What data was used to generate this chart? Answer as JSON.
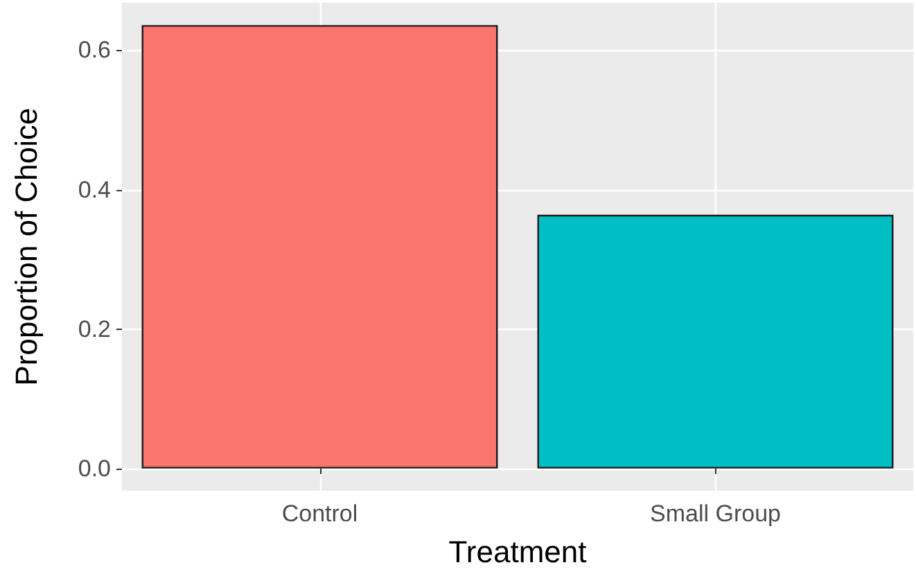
{
  "chart_data": {
    "type": "bar",
    "xlabel": "Treatment",
    "ylabel": "Proportion of Choice",
    "categories": [
      "Control",
      "Small Group"
    ],
    "values": [
      0.636,
      0.364
    ],
    "colors": [
      "#f8766d",
      "#00bfc4"
    ],
    "ylim": [
      -0.032,
      0.668
    ],
    "yticks": [
      {
        "value": 0,
        "label": "0.0"
      },
      {
        "value": 0.2,
        "label": "0.2"
      },
      {
        "value": 0.4,
        "label": "0.4"
      },
      {
        "value": 0.6,
        "label": "0.6"
      }
    ],
    "grid": true
  }
}
